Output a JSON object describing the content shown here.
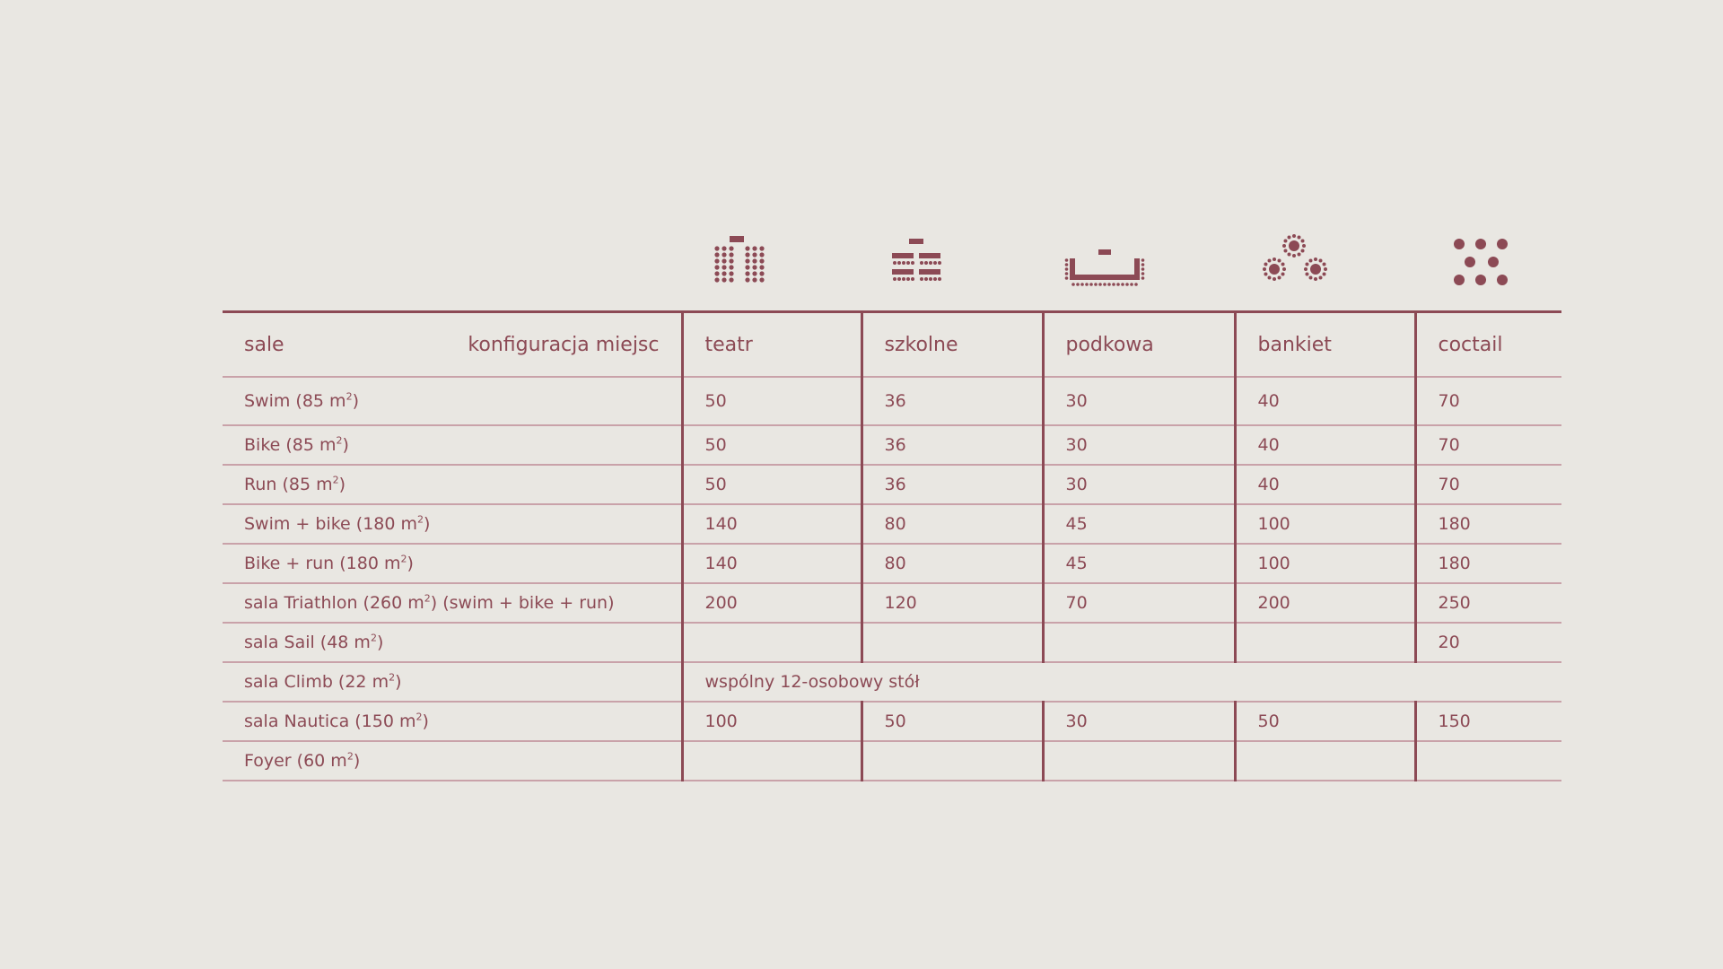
{
  "colors": {
    "background": "#e9e7e2",
    "accent": "#8c4a55",
    "rule_light": "#c9a2a9"
  },
  "icons": [
    "theatre-layout-icon",
    "classroom-layout-icon",
    "u-shape-layout-icon",
    "banquet-layout-icon",
    "cocktail-layout-icon"
  ],
  "header": {
    "rooms_label": "sale",
    "config_label": "konfiguracja miejsc",
    "columns": [
      "teatr",
      "szkolne",
      "podkowa",
      "bankiet",
      "coctail"
    ]
  },
  "rows": [
    {
      "name": "Swim (85 m",
      "sup": "2",
      "tail": ")",
      "values": [
        "50",
        "36",
        "30",
        "40",
        "70"
      ]
    },
    {
      "name": "Bike (85 m",
      "sup": "2",
      "tail": ")",
      "values": [
        "50",
        "36",
        "30",
        "40",
        "70"
      ]
    },
    {
      "name": "Run (85 m",
      "sup": "2",
      "tail": ")",
      "values": [
        "50",
        "36",
        "30",
        "40",
        "70"
      ]
    },
    {
      "name": "Swim + bike (180 m",
      "sup": "2",
      "tail": ")",
      "values": [
        "140",
        "80",
        "45",
        "100",
        "180"
      ]
    },
    {
      "name": "Bike + run (180 m",
      "sup": "2",
      "tail": ")",
      "values": [
        "140",
        "80",
        "45",
        "100",
        "180"
      ]
    },
    {
      "name": "sala Triathlon (260 m",
      "sup": "2",
      "tail": ") (swim + bike + run)",
      "values": [
        "200",
        "120",
        "70",
        "200",
        "250"
      ]
    },
    {
      "name": "sala Sail (48 m",
      "sup": "2",
      "tail": ")",
      "values": [
        "",
        "",
        "",
        "",
        "20"
      ]
    },
    {
      "name": "sala Climb (22 m",
      "sup": "2",
      "tail": ")",
      "note": "wspólny 12-osobowy stół"
    },
    {
      "name": "sala Nautica (150 m",
      "sup": "2",
      "tail": ")",
      "values": [
        "100",
        "50",
        "30",
        "50",
        "150"
      ]
    },
    {
      "name": "Foyer (60 m",
      "sup": "2",
      "tail": ")",
      "values": [
        "",
        "",
        "",
        "",
        ""
      ]
    }
  ]
}
